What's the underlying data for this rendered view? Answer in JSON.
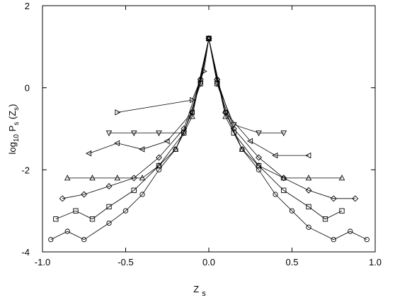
{
  "chart_data": {
    "type": "line",
    "x_label": [
      "Z",
      "s"
    ],
    "y_label": [
      "log",
      "10",
      " P",
      "s",
      " (Z",
      "s",
      ")"
    ],
    "xlim": [
      -1.0,
      1.0
    ],
    "xticks": [
      {
        "value": -1.0,
        "label": "-1.0"
      },
      {
        "value": -0.5,
        "label": "-0.5"
      },
      {
        "value": 0,
        "label": "0.0"
      },
      {
        "value": 0.5,
        "label": "0.5"
      },
      {
        "value": 1.0,
        "label": "1.0"
      }
    ],
    "ylim": [
      -4,
      2
    ],
    "yticks": [
      -4,
      -2,
      0,
      2
    ],
    "grid": false,
    "series": [
      {
        "marker": "circle",
        "color": "#000000",
        "x": [
          -0.95,
          -0.85,
          -0.75,
          -0.6,
          -0.5,
          -0.4,
          -0.3,
          -0.2,
          -0.1,
          -0.05,
          0,
          0.05,
          0.1,
          0.2,
          0.3,
          0.4,
          0.5,
          0.6,
          0.75,
          0.85,
          0.95
        ],
        "values": [
          -3.7,
          -3.5,
          -3.7,
          -3.3,
          -3.0,
          -2.6,
          -2.0,
          -1.5,
          -0.6,
          0.2,
          1.2,
          0.2,
          -0.6,
          -1.5,
          -2.0,
          -2.6,
          -3.0,
          -3.4,
          -3.7,
          -3.5,
          -3.7
        ]
      },
      {
        "marker": "square",
        "color": "#000000",
        "x": [
          -0.92,
          -0.8,
          -0.7,
          -0.6,
          -0.45,
          -0.3,
          -0.15,
          -0.05,
          0,
          0.05,
          0.15,
          0.3,
          0.45,
          0.6,
          0.7,
          0.8
        ],
        "values": [
          -3.2,
          -3.0,
          -3.2,
          -2.9,
          -2.5,
          -1.9,
          -1.1,
          0.1,
          1.2,
          0.1,
          -1.1,
          -1.9,
          -2.5,
          -2.9,
          -3.2,
          -3.0
        ]
      },
      {
        "marker": "diamond",
        "color": "#000000",
        "x": [
          -0.88,
          -0.75,
          -0.6,
          -0.45,
          -0.3,
          -0.15,
          -0.05,
          0,
          0.05,
          0.15,
          0.3,
          0.45,
          0.6,
          0.75,
          0.88
        ],
        "values": [
          -2.7,
          -2.6,
          -2.4,
          -2.2,
          -1.7,
          -1.0,
          0.2,
          1.2,
          0.2,
          -1.0,
          -1.7,
          -2.2,
          -2.5,
          -2.7,
          -2.7
        ]
      },
      {
        "marker": "triangle-up",
        "color": "#000000",
        "x": [
          -0.85,
          -0.7,
          -0.55,
          -0.4,
          -0.3,
          -0.2,
          -0.1,
          0,
          0.1,
          0.2,
          0.3,
          0.45,
          0.6,
          0.8
        ],
        "values": [
          -2.2,
          -2.2,
          -2.2,
          -2.2,
          -1.9,
          -1.5,
          -0.7,
          1.2,
          -0.7,
          -1.5,
          -1.9,
          -2.2,
          -2.2,
          -2.2
        ]
      },
      {
        "marker": "triangle-left",
        "color": "#000000",
        "x": [
          -0.72,
          -0.55,
          -0.4,
          -0.25,
          -0.1,
          0,
          0.1,
          0.25,
          0.4,
          0.6
        ],
        "values": [
          -1.6,
          -1.35,
          -1.5,
          -1.3,
          -0.6,
          1.2,
          -0.6,
          -1.3,
          -1.65,
          -1.65
        ]
      },
      {
        "marker": "triangle-down",
        "color": "#000000",
        "x": [
          -0.6,
          -0.45,
          -0.3,
          -0.15,
          -0.05,
          0,
          0.05,
          0.15,
          0.3,
          0.45
        ],
        "values": [
          -1.1,
          -1.1,
          -1.1,
          -1.1,
          0.1,
          1.2,
          0.1,
          -0.9,
          -1.1,
          -1.1
        ]
      },
      {
        "marker": "triangle-right",
        "color": "#000000",
        "x": [
          -0.55,
          -0.1,
          -0.03,
          0
        ],
        "values": [
          -0.6,
          -0.3,
          0.4,
          1.2
        ]
      }
    ]
  }
}
